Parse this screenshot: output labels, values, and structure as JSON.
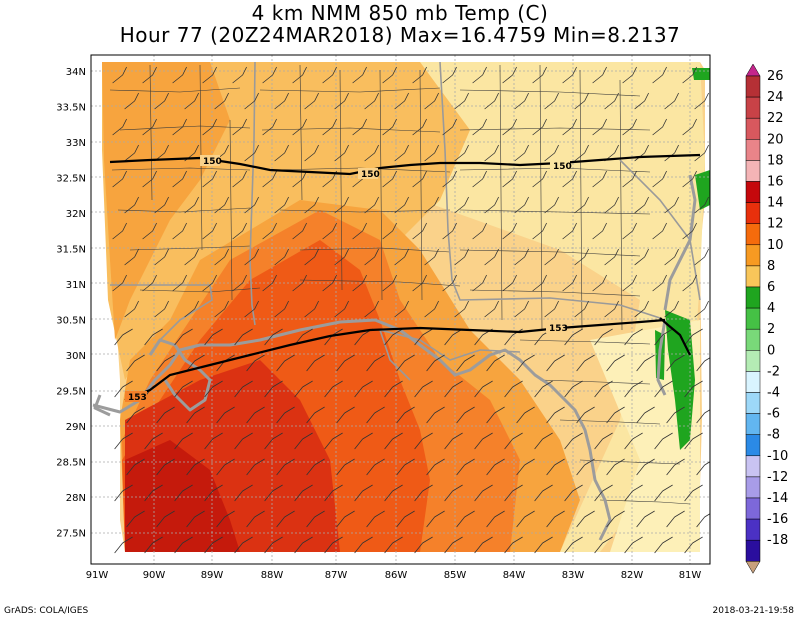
{
  "title": {
    "line1": "4 km NMM 850 mb Temp (C)",
    "line2": "Hour 77 (20Z24MAR2018) Max=16.4759 Min=8.2137"
  },
  "credits": {
    "left": "GrADS: COLA/IGES",
    "right": "2018-03-21-19:58"
  },
  "axes": {
    "lat_labels": [
      "34N",
      "33.5N",
      "33N",
      "32.5N",
      "32N",
      "31.5N",
      "31N",
      "30.5N",
      "30N",
      "29.5N",
      "29N",
      "28.5N",
      "28N",
      "27.5N"
    ],
    "lon_labels": [
      "91W",
      "90W",
      "89W",
      "88W",
      "87W",
      "86W",
      "85W",
      "84W",
      "83W",
      "82W",
      "81W"
    ]
  },
  "contours": [
    {
      "label": "150"
    },
    {
      "label": "150"
    },
    {
      "label": "150"
    },
    {
      "label": "153"
    },
    {
      "label": "153"
    }
  ],
  "colorbar": {
    "levels": [
      {
        "label": "26",
        "color": "#b53035"
      },
      {
        "label": "24",
        "color": "#c84247"
      },
      {
        "label": "22",
        "color": "#d8585e"
      },
      {
        "label": "20",
        "color": "#e98489"
      },
      {
        "label": "18",
        "color": "#f4b4b6"
      },
      {
        "label": "16",
        "color": "#c5080c"
      },
      {
        "label": "14",
        "color": "#e8300c"
      },
      {
        "label": "12",
        "color": "#f56b0c"
      },
      {
        "label": "10",
        "color": "#f79a22"
      },
      {
        "label": "8",
        "color": "#f8c65a"
      },
      {
        "label": "6",
        "color": "#1fa51f"
      },
      {
        "label": "4",
        "color": "#45c145"
      },
      {
        "label": "2",
        "color": "#79d979"
      },
      {
        "label": "0",
        "color": "#b4ecb4"
      },
      {
        "label": "-2",
        "color": "#d9f4ff"
      },
      {
        "label": "-4",
        "color": "#9dd8f8"
      },
      {
        "label": "-6",
        "color": "#62b6f0"
      },
      {
        "label": "-8",
        "color": "#2b8ae6"
      },
      {
        "label": "-10",
        "color": "#c9c3f2"
      },
      {
        "label": "-12",
        "color": "#a89ce8"
      },
      {
        "label": "-14",
        "color": "#7d68da"
      },
      {
        "label": "-16",
        "color": "#4b31c4"
      },
      {
        "label": "-18",
        "color": "#2a0e9e"
      }
    ],
    "top_color": "#c4268c",
    "bottom_color": "#c8a07c"
  }
}
